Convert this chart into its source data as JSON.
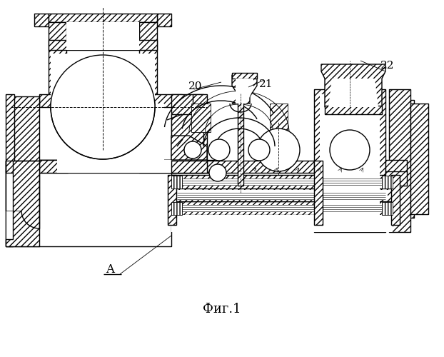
{
  "title": "Фиг.1",
  "label_A": "A",
  "num_20": "20",
  "num_21": "21",
  "num_22": "22",
  "bg": "#ffffff",
  "lc": "#000000",
  "fig_w": 6.22,
  "fig_h": 5.0,
  "dpi": 100
}
